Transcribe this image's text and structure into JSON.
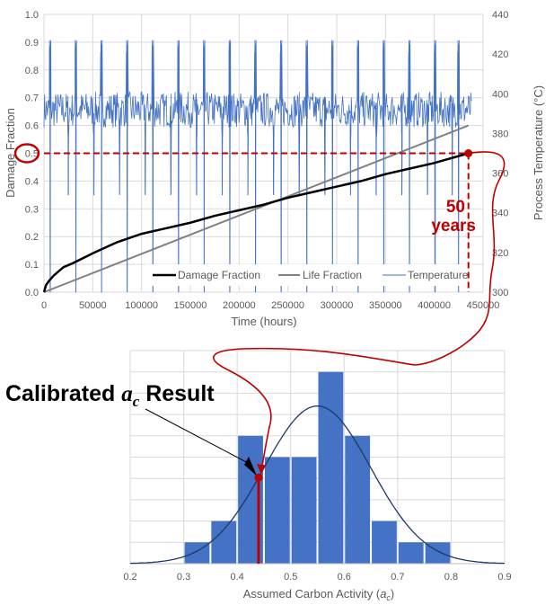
{
  "chart_data": [
    {
      "type": "line",
      "xlabel": "Time (hours)",
      "ylabel": "Damage Fraction",
      "y2label": "Process Temperature (°C)",
      "xlim": [
        0,
        450000
      ],
      "ylim": [
        0,
        1.0
      ],
      "y2lim": [
        300,
        440
      ],
      "xticks": [
        "0",
        "50000",
        "100000",
        "150000",
        "200000",
        "250000",
        "300000",
        "350000",
        "400000",
        "450000"
      ],
      "yticks": [
        "0.0",
        "0.1",
        "0.2",
        "0.3",
        "0.4",
        "0.5",
        "0.6",
        "0.7",
        "0.8",
        "0.9",
        "1.0"
      ],
      "y2ticks": [
        "300",
        "320",
        "340",
        "360",
        "380",
        "400",
        "420",
        "440"
      ],
      "grid": true,
      "legend_position": "bottom-inside",
      "series": [
        {
          "name": "Damage Fraction",
          "axis": "left",
          "color": "#000000",
          "x": [
            0,
            2000,
            5000,
            10000,
            20000,
            30000,
            50000,
            75000,
            100000,
            125000,
            150000,
            175000,
            200000,
            225000,
            250000,
            275000,
            300000,
            325000,
            350000,
            375000,
            400000,
            420000,
            435000
          ],
          "y": [
            0,
            0.025,
            0.04,
            0.06,
            0.09,
            0.105,
            0.14,
            0.18,
            0.21,
            0.23,
            0.25,
            0.275,
            0.295,
            0.315,
            0.34,
            0.36,
            0.38,
            0.4,
            0.425,
            0.445,
            0.465,
            0.485,
            0.5
          ]
        },
        {
          "name": "Life Fraction",
          "axis": "left",
          "color": "#808080",
          "x": [
            0,
            435000
          ],
          "y": [
            0,
            0.6
          ]
        },
        {
          "name": "Temperature",
          "axis": "right",
          "color": "#4472c4",
          "baseline": 392,
          "noise_range": [
            385,
            403
          ],
          "spike_high": 427,
          "spike_low": 300,
          "dip_low": 349,
          "spike_times": [
            5500,
            31800,
            58100,
            84400,
            110700,
            137000,
            163300,
            189600,
            215900,
            242200,
            268500,
            294800,
            321100,
            347400,
            373700,
            400000,
            424000
          ],
          "dip_times": [
            24500,
            50800,
            77100,
            103400,
            129700,
            156000,
            182300,
            208600,
            234900,
            261200,
            287500,
            313800,
            340100,
            366400,
            392700,
            418000
          ],
          "x_end": 438000
        }
      ],
      "annotations": {
        "highlight_value": "0.5",
        "target_damage": 0.5,
        "target_time": 435000,
        "label": "50\nyears",
        "label_line1": "50",
        "label_line2": "years",
        "color": "#c00000"
      }
    },
    {
      "type": "bar",
      "xlabel_prefix": "Assumed Carbon Activity (",
      "xlabel_var": "a",
      "xlabel_sub": "c",
      "xlabel_suffix": ")",
      "xlim": [
        0.2,
        0.9
      ],
      "ylim": [
        0,
        10
      ],
      "xticks": [
        "0.2",
        "0.3",
        "0.4",
        "0.5",
        "0.6",
        "0.7",
        "0.8",
        "0.9"
      ],
      "grid": true,
      "bins": [
        [
          0.3,
          0.35
        ],
        [
          0.35,
          0.4
        ],
        [
          0.4,
          0.45
        ],
        [
          0.45,
          0.5
        ],
        [
          0.5,
          0.55
        ],
        [
          0.55,
          0.6
        ],
        [
          0.6,
          0.65
        ],
        [
          0.65,
          0.7
        ],
        [
          0.7,
          0.75
        ],
        [
          0.75,
          0.8
        ]
      ],
      "counts": [
        1,
        2,
        6,
        5,
        5,
        9,
        6,
        2,
        1,
        1
      ],
      "bar_color": "#4472c4",
      "fit": {
        "type": "normal",
        "mean": 0.55,
        "sd": 0.1,
        "peak": 7.4,
        "color": "#1f3864"
      },
      "calibrated_value": 0.44,
      "annotation": {
        "text_prefix": "Calibrated ",
        "var": "a",
        "sub": "c",
        "text_suffix": " Result"
      }
    }
  ]
}
